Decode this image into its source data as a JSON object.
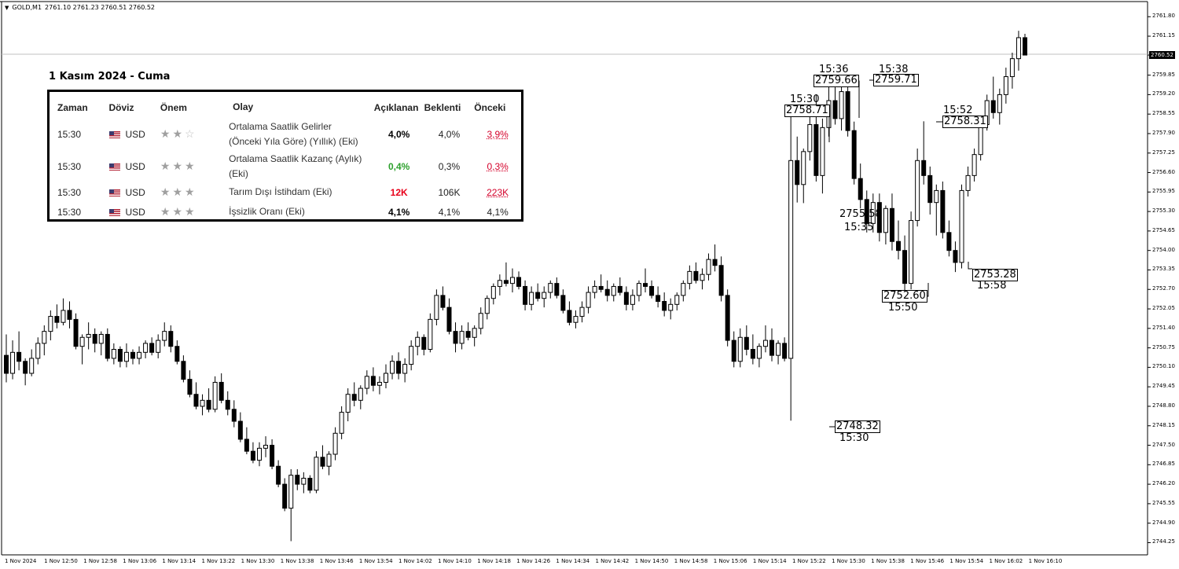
{
  "header": {
    "symbol": "GOLD,M1",
    "ohlc": "2761.10 2761.23 2760.51 2760.52"
  },
  "current_price": "2760.52",
  "calendar": {
    "date_title": "1 Kasım 2024 - Cuma",
    "columns": [
      "Zaman",
      "Döviz",
      "Önem",
      "Olay",
      "Açıklanan",
      "Beklenti",
      "Önceki"
    ],
    "rows": [
      {
        "time": "15:30",
        "currency": "USD",
        "stars": 2,
        "event_line1": "Ortalama Saatlik Gelirler",
        "event_line2": "(Önceki Yıla Göre) (Yıllık) (Eki)",
        "actual": "4,0%",
        "actual_color": "#000000",
        "forecast": "4,0%",
        "previous": "3,9%",
        "previous_red": true
      },
      {
        "time": "15:30",
        "currency": "USD",
        "stars": 3,
        "event_line1": "Ortalama Saatlik Kazanç (Aylık)",
        "event_line2": "(Eki)",
        "actual": "0,4%",
        "actual_color": "#2ca02c",
        "forecast": "0,3%",
        "previous": "0,3%",
        "previous_red": true
      },
      {
        "time": "15:30",
        "currency": "USD",
        "stars": 3,
        "event_line1": "Tarım Dışı İstihdam (Eki)",
        "event_line2": "",
        "actual": "12K",
        "actual_color": "#e8001a",
        "forecast": "106K",
        "previous": "223K",
        "previous_red": true
      },
      {
        "time": "15:30",
        "currency": "USD",
        "stars": 3,
        "event_line1": "İşsizlik Oranı (Eki)",
        "event_line2": "",
        "actual": "4,1%",
        "actual_color": "#000000",
        "forecast": "4,1%",
        "previous": "4,1%",
        "previous_red": false
      }
    ]
  },
  "annotations": [
    {
      "time": "15:30",
      "price": "2758.71"
    },
    {
      "time": "15:36",
      "price": "2759.66"
    },
    {
      "time": "15:38",
      "price": "2759.71"
    },
    {
      "time": "15:52",
      "price": "2758.31"
    },
    {
      "time": "15:35",
      "price": "2755,58"
    },
    {
      "time": "15:50",
      "price": "2752.60"
    },
    {
      "time": "15:58",
      "price": "2753.28"
    },
    {
      "time": "15:30",
      "price": "2748.32"
    }
  ],
  "chart_data": {
    "type": "candlestick",
    "title": "GOLD,M1",
    "y_ticks": [
      "2761.80",
      "2761.15",
      "2760.52",
      "2759.85",
      "2759.20",
      "2758.55",
      "2757.90",
      "2757.25",
      "2756.60",
      "2755.95",
      "2755.30",
      "2754.65",
      "2754.00",
      "2753.35",
      "2752.70",
      "2752.05",
      "2751.40",
      "2750.75",
      "2750.10",
      "2749.45",
      "2748.80",
      "2748.15",
      "2747.50",
      "2746.85",
      "2746.20",
      "2745.55",
      "2744.90",
      "2744.25"
    ],
    "x_ticks": [
      "1 Nov 2024",
      "1 Nov 12:50",
      "1 Nov 12:58",
      "1 Nov 13:06",
      "1 Nov 13:14",
      "1 Nov 13:22",
      "1 Nov 13:30",
      "1 Nov 13:38",
      "1 Nov 13:46",
      "1 Nov 13:54",
      "1 Nov 14:02",
      "1 Nov 14:10",
      "1 Nov 14:18",
      "1 Nov 14:26",
      "1 Nov 14:34",
      "1 Nov 14:42",
      "1 Nov 14:50",
      "1 Nov 14:58",
      "1 Nov 15:06",
      "1 Nov 15:14",
      "1 Nov 15:22",
      "1 Nov 15:30",
      "1 Nov 15:38",
      "1 Nov 15:46",
      "1 Nov 15:54",
      "1 Nov 16:02",
      "1 Nov 16:10"
    ],
    "ylim": [
      2744.0,
      2762.2
    ],
    "grid": false,
    "candles": [
      [
        2750.5,
        2751.2,
        2749.6,
        2749.9
      ],
      [
        2749.9,
        2751.0,
        2749.7,
        2750.6
      ],
      [
        2750.6,
        2751.3,
        2750.0,
        2750.3
      ],
      [
        2750.3,
        2750.4,
        2749.5,
        2749.9
      ],
      [
        2749.9,
        2750.7,
        2749.8,
        2750.4
      ],
      [
        2750.4,
        2751.1,
        2750.2,
        2750.9
      ],
      [
        2750.9,
        2751.5,
        2750.5,
        2751.3
      ],
      [
        2751.3,
        2752.0,
        2751.0,
        2751.8
      ],
      [
        2751.8,
        2752.2,
        2751.4,
        2751.6
      ],
      [
        2751.6,
        2752.4,
        2751.5,
        2752.0
      ],
      [
        2752.0,
        2752.3,
        2751.4,
        2751.7
      ],
      [
        2751.7,
        2751.9,
        2750.7,
        2750.8
      ],
      [
        2750.8,
        2751.2,
        2750.2,
        2751.1
      ],
      [
        2751.1,
        2751.6,
        2750.7,
        2751.2
      ],
      [
        2751.2,
        2751.4,
        2750.6,
        2750.9
      ],
      [
        2750.9,
        2751.3,
        2750.5,
        2751.2
      ],
      [
        2751.2,
        2751.4,
        2750.3,
        2750.4
      ],
      [
        2750.4,
        2750.9,
        2750.2,
        2750.7
      ],
      [
        2750.7,
        2750.8,
        2750.1,
        2750.3
      ],
      [
        2750.3,
        2750.9,
        2750.1,
        2750.6
      ],
      [
        2750.6,
        2750.7,
        2750.2,
        2750.4
      ],
      [
        2750.4,
        2750.8,
        2750.2,
        2750.6
      ],
      [
        2750.6,
        2751.0,
        2750.4,
        2750.9
      ],
      [
        2750.9,
        2751.1,
        2750.5,
        2750.6
      ],
      [
        2750.6,
        2751.2,
        2750.4,
        2751.0
      ],
      [
        2751.0,
        2751.6,
        2750.8,
        2751.3
      ],
      [
        2751.3,
        2751.5,
        2750.6,
        2750.8
      ],
      [
        2750.8,
        2751.0,
        2750.2,
        2750.3
      ],
      [
        2750.3,
        2750.5,
        2749.6,
        2749.7
      ],
      [
        2749.7,
        2750.0,
        2749.1,
        2749.2
      ],
      [
        2749.2,
        2749.6,
        2748.7,
        2748.8
      ],
      [
        2748.8,
        2749.2,
        2748.5,
        2749.0
      ],
      [
        2749.0,
        2749.4,
        2748.6,
        2748.7
      ],
      [
        2748.7,
        2749.8,
        2748.6,
        2749.6
      ],
      [
        2749.6,
        2749.9,
        2748.9,
        2749.0
      ],
      [
        2749.0,
        2749.3,
        2748.5,
        2748.7
      ],
      [
        2748.7,
        2749.0,
        2748.1,
        2748.3
      ],
      [
        2748.3,
        2748.6,
        2747.6,
        2747.7
      ],
      [
        2747.7,
        2748.1,
        2747.2,
        2747.3
      ],
      [
        2747.3,
        2747.6,
        2746.9,
        2747.0
      ],
      [
        2747.0,
        2747.6,
        2746.8,
        2747.4
      ],
      [
        2747.4,
        2747.8,
        2747.1,
        2747.5
      ],
      [
        2747.5,
        2747.7,
        2746.7,
        2746.8
      ],
      [
        2746.8,
        2747.0,
        2746.1,
        2746.2
      ],
      [
        2746.2,
        2746.4,
        2745.3,
        2745.4
      ],
      [
        2745.4,
        2746.7,
        2744.3,
        2746.5
      ],
      [
        2746.5,
        2746.7,
        2746.0,
        2746.2
      ],
      [
        2746.2,
        2746.6,
        2745.9,
        2746.4
      ],
      [
        2746.4,
        2746.5,
        2745.9,
        2746.0
      ],
      [
        2746.0,
        2747.3,
        2745.9,
        2747.1
      ],
      [
        2747.1,
        2747.5,
        2746.7,
        2746.8
      ],
      [
        2746.8,
        2747.3,
        2746.5,
        2747.2
      ],
      [
        2747.2,
        2748.1,
        2747.0,
        2747.9
      ],
      [
        2747.9,
        2748.8,
        2747.7,
        2748.6
      ],
      [
        2748.6,
        2749.4,
        2748.3,
        2749.2
      ],
      [
        2749.2,
        2749.6,
        2748.8,
        2749.0
      ],
      [
        2749.0,
        2749.5,
        2748.7,
        2749.4
      ],
      [
        2749.4,
        2750.0,
        2749.2,
        2749.8
      ],
      [
        2749.8,
        2750.1,
        2749.3,
        2749.5
      ],
      [
        2749.5,
        2749.8,
        2749.2,
        2749.6
      ],
      [
        2749.6,
        2750.2,
        2749.4,
        2749.9
      ],
      [
        2749.9,
        2750.5,
        2749.7,
        2750.3
      ],
      [
        2750.3,
        2750.6,
        2749.7,
        2749.9
      ],
      [
        2749.9,
        2750.4,
        2749.6,
        2750.2
      ],
      [
        2750.2,
        2751.0,
        2750.0,
        2750.8
      ],
      [
        2750.8,
        2751.3,
        2750.5,
        2751.1
      ],
      [
        2751.1,
        2751.2,
        2750.5,
        2750.7
      ],
      [
        2750.7,
        2751.9,
        2750.6,
        2751.7
      ],
      [
        2751.7,
        2752.7,
        2751.5,
        2752.5
      ],
      [
        2752.5,
        2752.8,
        2752.0,
        2752.1
      ],
      [
        2752.1,
        2752.4,
        2751.2,
        2751.3
      ],
      [
        2751.3,
        2751.6,
        2750.6,
        2750.9
      ],
      [
        2750.9,
        2751.5,
        2750.7,
        2751.3
      ],
      [
        2751.3,
        2751.6,
        2751.0,
        2751.1
      ],
      [
        2751.1,
        2751.5,
        2750.8,
        2751.4
      ],
      [
        2751.4,
        2752.1,
        2751.2,
        2751.9
      ],
      [
        2751.9,
        2752.5,
        2751.7,
        2752.4
      ],
      [
        2752.4,
        2752.9,
        2752.2,
        2752.8
      ],
      [
        2752.8,
        2753.2,
        2752.5,
        2753.0
      ],
      [
        2753.0,
        2753.6,
        2752.8,
        2752.9
      ],
      [
        2752.9,
        2753.4,
        2752.6,
        2753.1
      ],
      [
        2753.1,
        2753.3,
        2752.7,
        2752.8
      ],
      [
        2752.8,
        2753.0,
        2752.0,
        2752.2
      ],
      [
        2752.2,
        2752.8,
        2752.0,
        2752.6
      ],
      [
        2752.6,
        2752.9,
        2752.3,
        2752.4
      ],
      [
        2752.4,
        2752.8,
        2752.1,
        2752.6
      ],
      [
        2752.6,
        2753.0,
        2752.4,
        2752.9
      ],
      [
        2752.9,
        2753.1,
        2752.4,
        2752.5
      ],
      [
        2752.5,
        2752.7,
        2751.9,
        2752.0
      ],
      [
        2752.0,
        2752.3,
        2751.5,
        2751.6
      ],
      [
        2751.6,
        2752.0,
        2751.4,
        2751.8
      ],
      [
        2751.8,
        2752.3,
        2751.6,
        2752.1
      ],
      [
        2752.1,
        2752.8,
        2751.9,
        2752.6
      ],
      [
        2752.6,
        2753.0,
        2752.4,
        2752.8
      ],
      [
        2752.8,
        2753.2,
        2752.6,
        2752.7
      ],
      [
        2752.7,
        2753.0,
        2752.3,
        2752.5
      ],
      [
        2752.5,
        2752.9,
        2752.3,
        2752.8
      ],
      [
        2752.8,
        2753.1,
        2752.5,
        2752.6
      ],
      [
        2752.6,
        2752.8,
        2752.0,
        2752.2
      ],
      [
        2752.2,
        2752.7,
        2752.0,
        2752.5
      ],
      [
        2752.5,
        2753.0,
        2752.3,
        2752.9
      ],
      [
        2752.9,
        2753.4,
        2752.6,
        2752.8
      ],
      [
        2752.8,
        2753.0,
        2752.4,
        2752.5
      ],
      [
        2752.5,
        2752.8,
        2752.1,
        2752.3
      ],
      [
        2752.3,
        2752.6,
        2751.8,
        2752.0
      ],
      [
        2752.0,
        2752.4,
        2751.7,
        2752.2
      ],
      [
        2752.2,
        2752.6,
        2752.0,
        2752.5
      ],
      [
        2752.5,
        2753.0,
        2752.3,
        2752.9
      ],
      [
        2752.9,
        2753.5,
        2752.7,
        2753.3
      ],
      [
        2753.3,
        2753.6,
        2752.9,
        2753.0
      ],
      [
        2753.0,
        2753.4,
        2752.7,
        2753.2
      ],
      [
        2753.2,
        2753.9,
        2753.0,
        2753.7
      ],
      [
        2753.7,
        2754.2,
        2753.3,
        2753.5
      ],
      [
        2753.5,
        2753.8,
        2752.3,
        2752.5
      ],
      [
        2752.5,
        2752.7,
        2750.8,
        2751.0
      ],
      [
        2751.0,
        2751.3,
        2750.1,
        2750.3
      ],
      [
        2750.3,
        2751.4,
        2750.1,
        2751.1
      ],
      [
        2751.1,
        2751.5,
        2750.5,
        2750.7
      ],
      [
        2750.7,
        2751.2,
        2750.2,
        2750.4
      ],
      [
        2750.4,
        2750.9,
        2750.1,
        2750.8
      ],
      [
        2750.8,
        2751.5,
        2750.6,
        2751.0
      ],
      [
        2751.0,
        2751.4,
        2750.3,
        2750.5
      ],
      [
        2750.5,
        2751.0,
        2750.2,
        2750.9
      ],
      [
        2750.9,
        2751.1,
        2750.3,
        2750.4
      ],
      [
        2750.4,
        2758.71,
        2748.32,
        2757.0
      ],
      [
        2757.0,
        2757.8,
        2755.6,
        2756.2
      ],
      [
        2756.2,
        2757.4,
        2755.58,
        2757.3
      ],
      [
        2757.3,
        2758.6,
        2757.0,
        2758.2
      ],
      [
        2758.2,
        2759.2,
        2756.3,
        2756.5
      ],
      [
        2756.5,
        2758.4,
        2755.9,
        2758.1
      ],
      [
        2758.1,
        2759.66,
        2757.8,
        2759.0
      ],
      [
        2759.0,
        2759.5,
        2758.2,
        2758.4
      ],
      [
        2758.4,
        2759.71,
        2758.0,
        2759.3
      ],
      [
        2759.3,
        2759.7,
        2757.8,
        2758.0
      ],
      [
        2758.0,
        2758.3,
        2756.2,
        2756.4
      ],
      [
        2756.4,
        2756.9,
        2755.4,
        2755.7
      ],
      [
        2755.7,
        2756.0,
        2754.6,
        2754.9
      ],
      [
        2754.9,
        2755.9,
        2754.6,
        2755.6
      ],
      [
        2755.6,
        2755.9,
        2754.3,
        2754.6
      ],
      [
        2754.6,
        2755.5,
        2754.2,
        2755.4
      ],
      [
        2755.4,
        2755.9,
        2754.0,
        2754.3
      ],
      [
        2754.3,
        2755.0,
        2753.7,
        2754.0
      ],
      [
        2754.0,
        2754.5,
        2752.6,
        2752.9
      ],
      [
        2752.9,
        2755.3,
        2752.7,
        2755.0
      ],
      [
        2755.0,
        2757.4,
        2754.8,
        2757.0
      ],
      [
        2757.0,
        2758.31,
        2756.2,
        2756.5
      ],
      [
        2756.5,
        2756.8,
        2755.2,
        2755.6
      ],
      [
        2755.6,
        2756.2,
        2754.5,
        2756.0
      ],
      [
        2756.0,
        2756.3,
        2754.4,
        2754.6
      ],
      [
        2754.6,
        2755.0,
        2753.8,
        2754.0
      ],
      [
        2754.0,
        2754.3,
        2753.28,
        2753.6
      ],
      [
        2753.6,
        2756.2,
        2753.4,
        2756.0
      ],
      [
        2756.0,
        2756.8,
        2755.8,
        2756.5
      ],
      [
        2756.5,
        2757.4,
        2756.3,
        2757.2
      ],
      [
        2757.2,
        2758.4,
        2757.0,
        2758.2
      ],
      [
        2758.2,
        2759.2,
        2758.0,
        2759.0
      ],
      [
        2759.0,
        2759.8,
        2758.4,
        2758.6
      ],
      [
        2758.6,
        2759.4,
        2758.2,
        2759.2
      ],
      [
        2759.2,
        2760.1,
        2758.9,
        2759.8
      ],
      [
        2759.8,
        2760.6,
        2759.4,
        2760.4
      ],
      [
        2760.4,
        2761.33,
        2760.0,
        2761.1
      ],
      [
        2761.1,
        2761.23,
        2760.51,
        2760.52
      ]
    ]
  }
}
